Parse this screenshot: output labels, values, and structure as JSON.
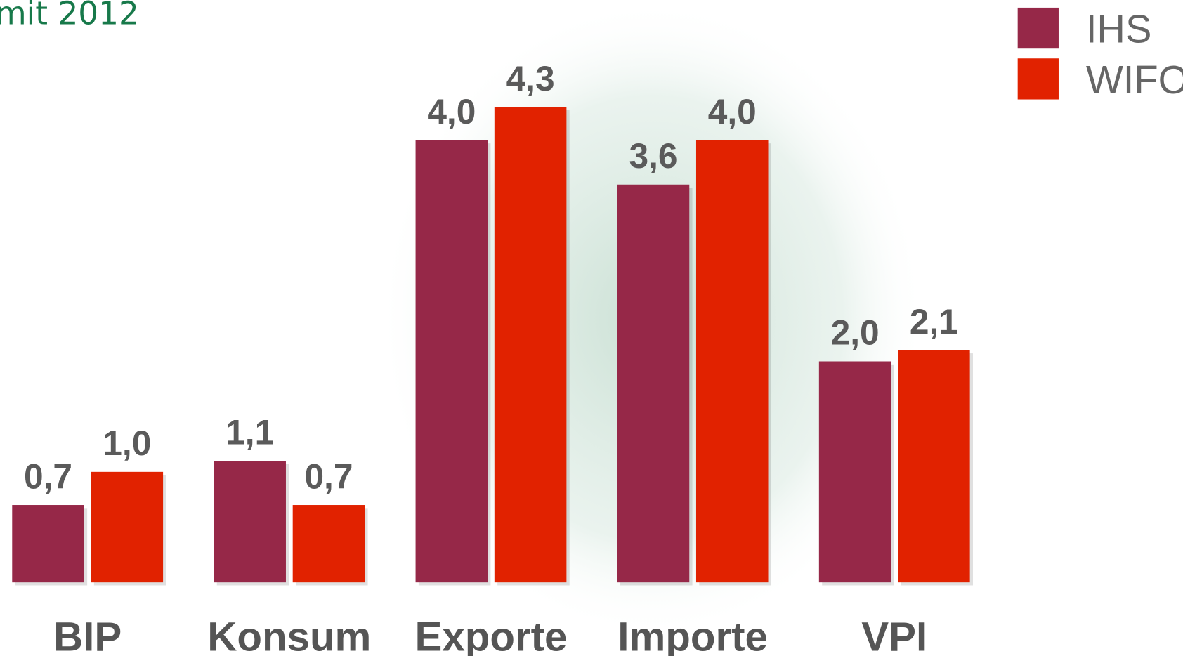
{
  "chart_data": {
    "type": "bar",
    "title": "mit 2012",
    "categories": [
      "BIP",
      "Konsum",
      "Exporte",
      "Importe",
      "VPI"
    ],
    "series": [
      {
        "name": "IHS",
        "color": "#962848",
        "values": [
          0.7,
          1.1,
          4.0,
          3.6,
          2.0
        ],
        "value_labels": [
          "0,7",
          "1,1",
          "4,0",
          "3,6",
          "2,0"
        ]
      },
      {
        "name": "WIFO",
        "color": "#e12200",
        "values": [
          1.0,
          0.7,
          4.3,
          4.0,
          2.1
        ],
        "value_labels": [
          "1,0",
          "0,7",
          "4,3",
          "4,0",
          "2,1"
        ]
      }
    ],
    "legend": "top-right"
  }
}
